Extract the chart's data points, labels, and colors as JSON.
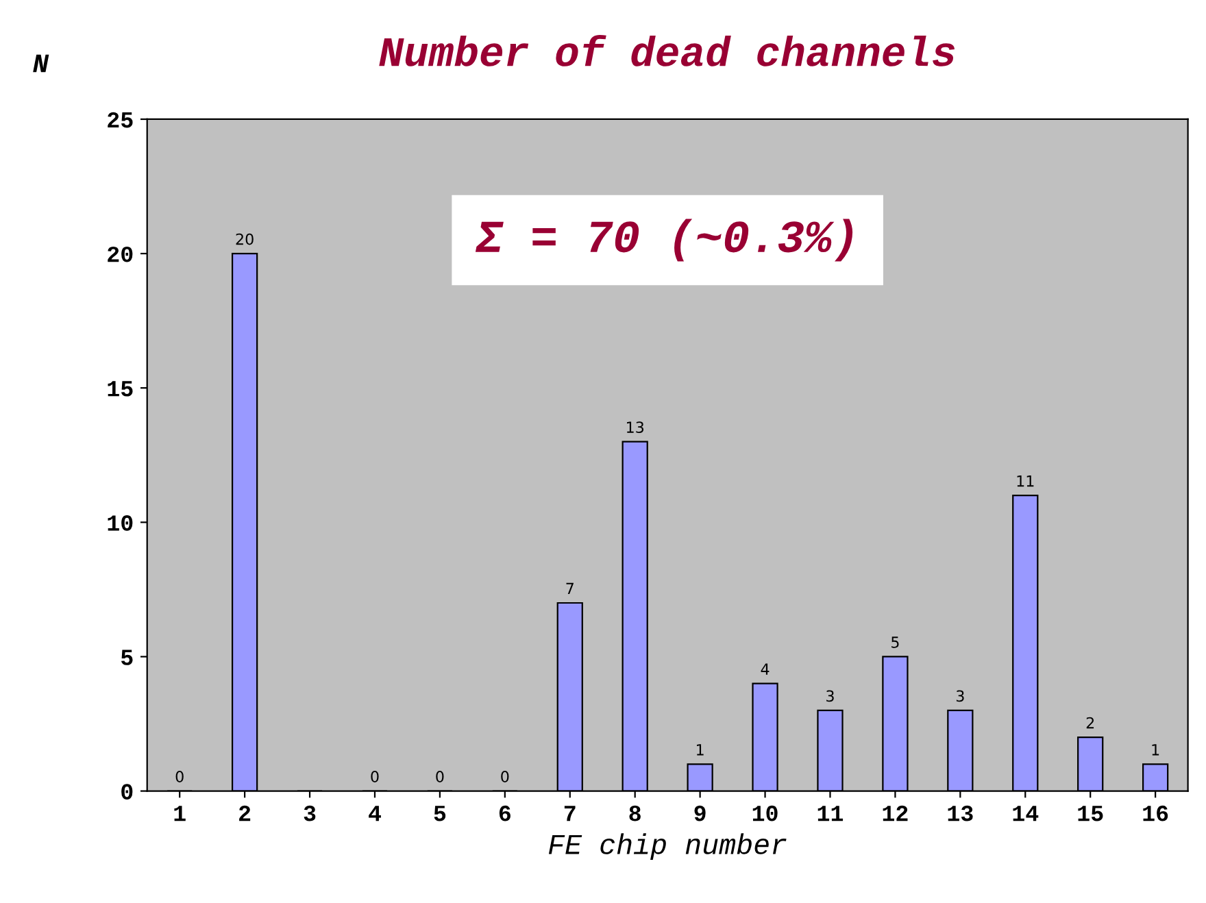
{
  "chart_data": {
    "type": "bar",
    "title": "Number of dead channels",
    "xlabel": "FE chip number",
    "ylabel": "N",
    "categories": [
      "1",
      "2",
      "3",
      "4",
      "5",
      "6",
      "7",
      "8",
      "9",
      "10",
      "11",
      "12",
      "13",
      "14",
      "15",
      "16"
    ],
    "values": [
      0,
      20,
      0,
      0,
      0,
      0,
      7,
      13,
      1,
      4,
      3,
      5,
      3,
      11,
      2,
      1
    ],
    "value_labels": [
      "0",
      "20",
      null,
      "0",
      "0",
      "0",
      "7",
      "13",
      "1",
      "4",
      "3",
      "5",
      "3",
      "11",
      "2",
      "1"
    ],
    "color": "#9999ff",
    "ylim": [
      0,
      25
    ],
    "yticks": [
      0,
      5,
      10,
      15,
      20,
      25
    ],
    "grid": false,
    "annotations": [
      "Σ = 70 (~0.3%)"
    ]
  }
}
